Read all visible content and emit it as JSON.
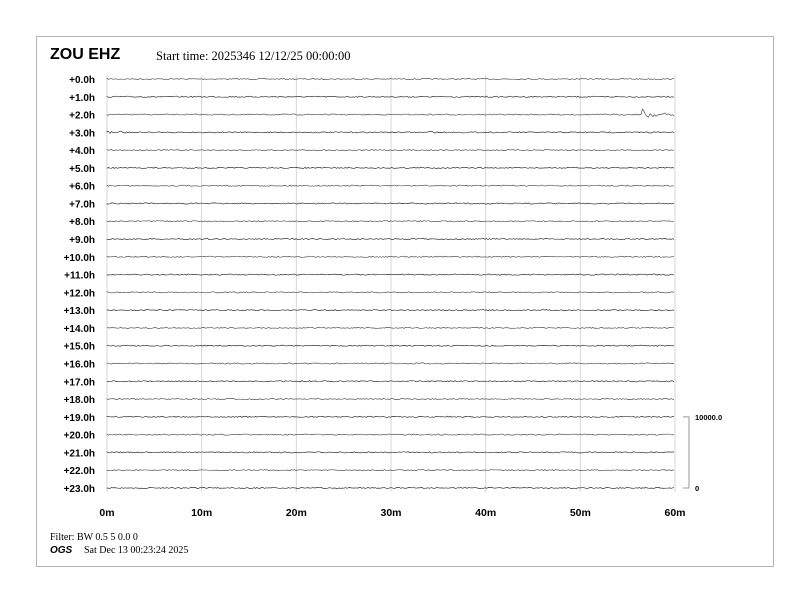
{
  "header": {
    "station": "ZOU EHZ",
    "start_time": "Start time: 2025346 12/12/25 00:00:00"
  },
  "footer": {
    "filter": "Filter: BW 0.5 5 0.0 0",
    "org": "OGS",
    "printed": "Sat Dec 13 00:23:24 2025"
  },
  "chart_data": {
    "type": "line",
    "title": "ZOU EHZ",
    "row_labels": [
      "+0.0h",
      "+1.0h",
      "+2.0h",
      "+3.0h",
      "+4.0h",
      "+5.0h",
      "+6.0h",
      "+7.0h",
      "+8.0h",
      "+9.0h",
      "+10.0h",
      "+11.0h",
      "+12.0h",
      "+13.0h",
      "+14.0h",
      "+15.0h",
      "+16.0h",
      "+17.0h",
      "+18.0h",
      "+19.0h",
      "+20.0h",
      "+21.0h",
      "+22.0h",
      "+23.0h"
    ],
    "x_ticks": [
      "0m",
      "10m",
      "20m",
      "30m",
      "40m",
      "50m",
      "60m"
    ],
    "xlim": [
      0,
      60
    ],
    "grid": true,
    "scale_bar": {
      "top_label": "10000.0",
      "bottom_label": "0"
    },
    "events": [
      {
        "row": "+2.0h",
        "start_min": 56.5,
        "end_min": 60,
        "amplitude": "large"
      },
      {
        "row": "+3.0h",
        "start_min": 0,
        "end_min": 2,
        "amplitude": "small"
      },
      {
        "row": "+3.0h",
        "start_min": 33.8,
        "end_min": 34.5,
        "amplitude": "small"
      }
    ]
  }
}
